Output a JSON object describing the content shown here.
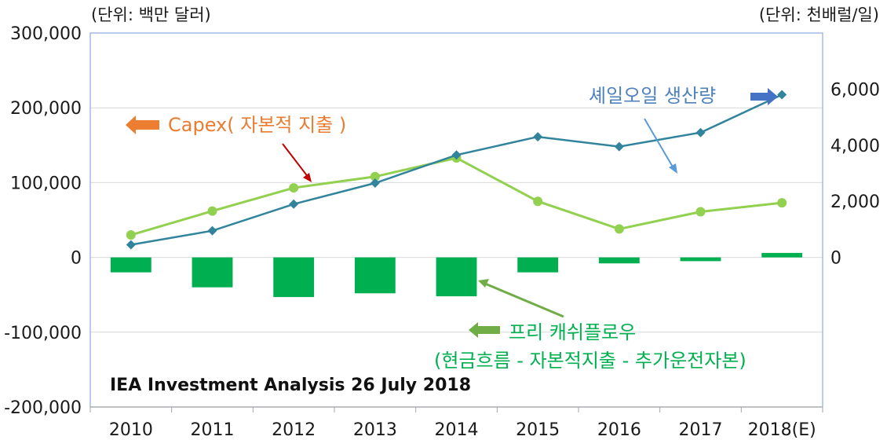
{
  "chart_data": {
    "type": "bar+line",
    "categories": [
      "2010",
      "2011",
      "2012",
      "2013",
      "2014",
      "2015",
      "2016",
      "2017",
      "2018(E)"
    ],
    "left_axis": {
      "unit_label": "(단위: 백만 달러)",
      "ylim": [
        -200000,
        300000
      ],
      "ticks": [
        "300,000",
        "200,000",
        "100,000",
        "0",
        "-100,000",
        "-200,000"
      ]
    },
    "right_axis": {
      "unit_label": "(단위: 천배럴/일)",
      "ylim": [
        0,
        8000
      ],
      "ticks": [
        "6,000",
        "4,000",
        "2,000",
        "0"
      ]
    },
    "series": [
      {
        "name": "Capex( 자본적 지출 )",
        "kind": "line",
        "axis": "left",
        "color": "#92d050",
        "values": [
          30000,
          62000,
          93000,
          108000,
          133000,
          75000,
          38000,
          61000,
          73000
        ]
      },
      {
        "name": "셰일오일 생산량",
        "kind": "line",
        "axis": "right",
        "color": "#31849b",
        "values": [
          450,
          950,
          1900,
          2650,
          3650,
          4300,
          3950,
          4450,
          5800
        ]
      },
      {
        "name": "프리 캐쉬플로우",
        "kind": "bar",
        "axis": "left",
        "color": "#00b050",
        "values": [
          -20000,
          -40000,
          -53000,
          -48000,
          -52000,
          -20000,
          -8000,
          -5000,
          6000
        ]
      }
    ],
    "annotations": {
      "capex_label": "Capex( 자본적 지출 )",
      "shale_label": "셰일오일 생산량",
      "fcf_label": "프리 캐쉬플로우",
      "fcf_sublabel": "(현금흐름 - 자본적지출 - 추가운전자본)",
      "credit": "IEA Investment Analysis 26 July 2018"
    },
    "colors": {
      "capex_text": "#e97c30",
      "capex_arrow": "#ed7d31",
      "capex_pointer": "#c00000",
      "shale_text": "#4f81bd",
      "shale_arrow": "#4472c4",
      "shale_pointer": "#5b9bd5",
      "fcf_text": "#00b050",
      "fcf_arrow": "#70ad47",
      "grid": "#d9d9d9",
      "frame": "#8eaadb"
    },
    "grid": true
  }
}
